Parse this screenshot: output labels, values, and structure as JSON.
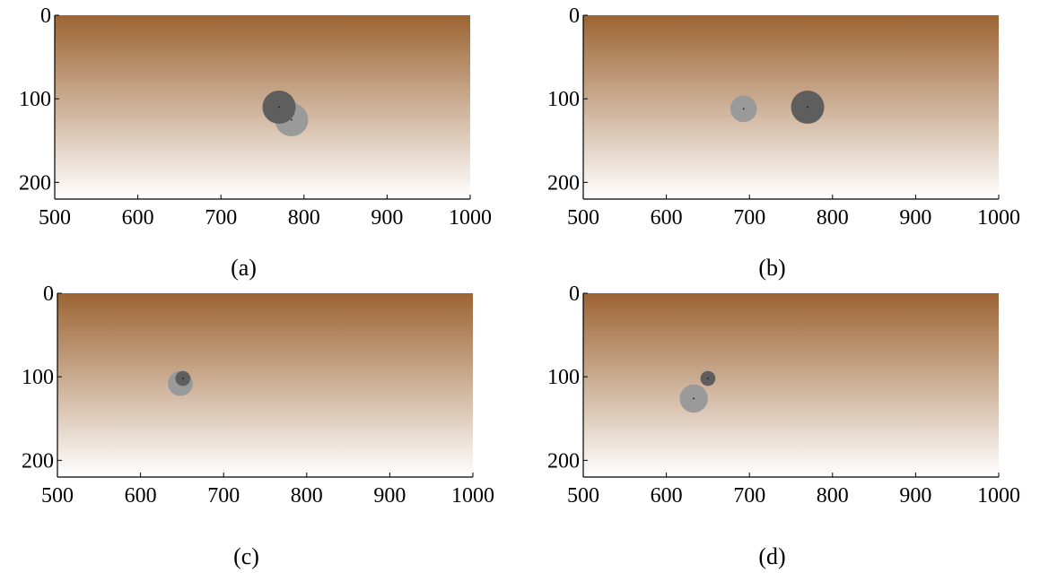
{
  "chart_data": [
    {
      "type": "scatter",
      "panel_label": "(a)",
      "xlim": [
        500,
        1000
      ],
      "ylim": [
        0,
        220
      ],
      "y_inverted": true,
      "xticks": [
        500,
        600,
        700,
        800,
        900,
        1000
      ],
      "yticks": [
        0,
        100,
        200
      ],
      "grid": false,
      "background": {
        "type": "vertical-gradient",
        "top_color": "#9c6432",
        "bottom_color": "#ffffff"
      },
      "points": [
        {
          "x": 785,
          "y": 125,
          "r": 20,
          "color": "#9a9a9a"
        },
        {
          "x": 770,
          "y": 110,
          "r": 20,
          "color": "#5e5e5e"
        }
      ]
    },
    {
      "type": "scatter",
      "panel_label": "(b)",
      "xlim": [
        500,
        1000
      ],
      "ylim": [
        0,
        220
      ],
      "y_inverted": true,
      "xticks": [
        500,
        600,
        700,
        800,
        900,
        1000
      ],
      "yticks": [
        0,
        100,
        200
      ],
      "grid": false,
      "background": {
        "type": "vertical-gradient",
        "top_color": "#9c6432",
        "bottom_color": "#ffffff"
      },
      "points": [
        {
          "x": 693,
          "y": 112,
          "r": 16,
          "color": "#9a9a9a"
        },
        {
          "x": 770,
          "y": 110,
          "r": 20,
          "color": "#5e5e5e"
        }
      ]
    },
    {
      "type": "scatter",
      "panel_label": "(c)",
      "xlim": [
        500,
        1000
      ],
      "ylim": [
        0,
        220
      ],
      "y_inverted": true,
      "xticks": [
        500,
        600,
        700,
        800,
        900,
        1000
      ],
      "yticks": [
        0,
        100,
        200
      ],
      "grid": false,
      "background": {
        "type": "vertical-gradient",
        "top_color": "#9c6432",
        "bottom_color": "#ffffff"
      },
      "points": [
        {
          "x": 648,
          "y": 108,
          "r": 15,
          "color": "#9a9a9a"
        },
        {
          "x": 651,
          "y": 102,
          "r": 9,
          "color": "#5e5e5e"
        }
      ]
    },
    {
      "type": "scatter",
      "panel_label": "(d)",
      "xlim": [
        500,
        1000
      ],
      "ylim": [
        0,
        220
      ],
      "y_inverted": true,
      "xticks": [
        500,
        600,
        700,
        800,
        900,
        1000
      ],
      "yticks": [
        0,
        100,
        200
      ],
      "grid": false,
      "background": {
        "type": "vertical-gradient",
        "top_color": "#9c6432",
        "bottom_color": "#ffffff"
      },
      "points": [
        {
          "x": 633,
          "y": 126,
          "r": 17,
          "color": "#9a9a9a"
        },
        {
          "x": 650,
          "y": 102,
          "r": 9,
          "color": "#5e5e5e"
        }
      ]
    }
  ]
}
